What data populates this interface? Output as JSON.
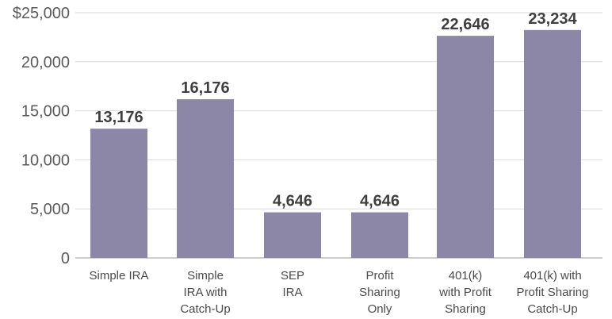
{
  "chart_data": {
    "type": "bar",
    "categories": [
      [
        "Simple IRA"
      ],
      [
        "Simple",
        "IRA with",
        "Catch-Up"
      ],
      [
        "SEP",
        "IRA"
      ],
      [
        "Profit",
        "Sharing",
        "Only"
      ],
      [
        "401(k)",
        "with Profit",
        "Sharing"
      ],
      [
        "401(k) with",
        "Profit Sharing",
        "Catch-Up"
      ]
    ],
    "values": [
      13176,
      16176,
      4646,
      4646,
      22646,
      23234
    ],
    "value_labels": [
      "13,176",
      "16,176",
      "4,646",
      "4,646",
      "22,646",
      "23,234"
    ],
    "yticks": [
      {
        "value": 0,
        "label": "0"
      },
      {
        "value": 5000,
        "label": "5,000"
      },
      {
        "value": 10000,
        "label": "10,000"
      },
      {
        "value": 15000,
        "label": "15,000"
      },
      {
        "value": 20000,
        "label": "20,000"
      },
      {
        "value": 25000,
        "label": "$25,000"
      }
    ],
    "ylim": [
      0,
      25000
    ],
    "grid": true,
    "bar_color": "#8c87a6",
    "title": "",
    "xlabel": "",
    "ylabel": ""
  }
}
